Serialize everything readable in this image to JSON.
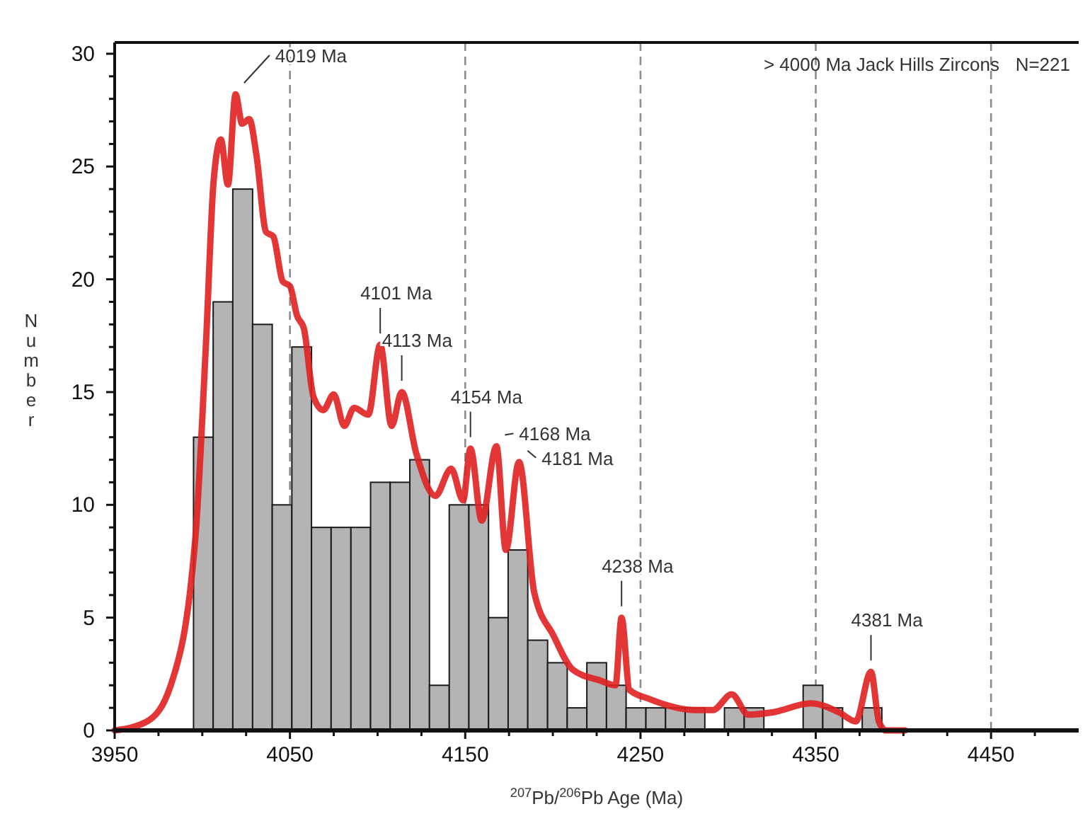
{
  "chart_data": {
    "type": "histogram",
    "xlabel": "$^{207}$Pb/$^{206}$Pb Age  (Ma)",
    "ylabel": "Number",
    "bins": [
      3995.0,
      4006.2,
      4017.4,
      4028.7,
      4039.9,
      4051.1,
      4062.3,
      4073.5,
      4084.8,
      4096.0,
      4107.2,
      4118.4,
      4129.6,
      4140.9,
      4152.1,
      4163.3,
      4174.5,
      4185.7,
      4197.0,
      4208.2,
      4219.4,
      4230.6,
      4241.8,
      4253.1,
      4264.3,
      4275.5,
      4286.7,
      4297.9,
      4309.2,
      4320.4,
      4331.6,
      4342.8,
      4354.0,
      4365.3,
      4376.5,
      4387.7
    ],
    "series": [
      {
        "color": "#b4b4b4",
        "values": [
          13,
          19,
          24,
          18,
          10,
          17,
          9,
          9,
          9,
          11,
          11,
          12,
          2,
          10,
          10,
          5,
          8,
          4,
          3,
          1,
          3,
          2,
          1,
          1,
          1,
          1,
          0,
          1,
          1,
          0,
          0,
          2,
          1,
          0,
          1
        ]
      },
      {
        "type": "line",
        "color": "#e02020",
        "x": [
          3950,
          3968.5,
          3982,
          3996,
          4002,
          4006.5,
          4010.6,
          4014.6,
          4019,
          4022.7,
          4026.8,
          4030.9,
          4036.4,
          4040.5,
          4045.9,
          4050,
          4054,
          4058,
          4063.4,
          4069,
          4075,
          4081,
          4086.6,
          4094.7,
          4101.5,
          4108,
          4113.8,
          4122,
          4133,
          4142,
          4148.8,
          4153,
          4159.4,
          4167.8,
          4173.2,
          4180.7,
          4189.4,
          4200.4,
          4211.3,
          4227.5,
          4235.7,
          4239.2,
          4243.7,
          4254.8,
          4281.5,
          4291.3,
          4302,
          4311.6,
          4325.3,
          4347.2,
          4363.3,
          4372.8,
          4381.5,
          4386,
          4390,
          4401
        ],
        "values": [
          0,
          0.4,
          2.0,
          8.5,
          17,
          24.4,
          26.2,
          24.2,
          28.2,
          26.9,
          27.1,
          25.5,
          22.1,
          21.9,
          19.9,
          19.7,
          18.4,
          17.8,
          14.8,
          14.2,
          14.9,
          13.5,
          14.3,
          14.0,
          17.1,
          13.5,
          15.0,
          12.3,
          10.4,
          11.6,
          10.2,
          12.5,
          9.3,
          12.6,
          8.0,
          11.9,
          6.1,
          4.2,
          2.7,
          2.2,
          2.0,
          5.0,
          1.8,
          1.4,
          0.9,
          0.9,
          1.6,
          0.7,
          0.8,
          1.2,
          0.8,
          0.4,
          2.6,
          0.4,
          0,
          0
        ]
      }
    ],
    "xlim": [
      3950,
      4500
    ],
    "ylim": [
      0,
      30.5
    ],
    "xticks": [
      3950,
      {
        "value": 3975,
        "label": null
      },
      {
        "value": 4000,
        "label": null
      },
      {
        "value": 4025,
        "label": null
      },
      4050,
      {
        "value": 4075,
        "label": null
      },
      {
        "value": 4100,
        "label": null
      },
      {
        "value": 4125,
        "label": null
      },
      4150,
      {
        "value": 4175,
        "label": null
      },
      {
        "value": 4200,
        "label": null
      },
      {
        "value": 4225,
        "label": null
      },
      4250,
      {
        "value": 4275,
        "label": null
      },
      {
        "value": 4300,
        "label": null
      },
      {
        "value": 4325,
        "label": null
      },
      4350,
      {
        "value": 4375,
        "label": null
      },
      {
        "value": 4400,
        "label": null
      },
      {
        "value": 4425,
        "label": null
      },
      4450,
      {
        "value": 4475,
        "label": null
      }
    ],
    "yticks": [
      0,
      {
        "value": 1,
        "label": null
      },
      {
        "value": 2,
        "label": null
      },
      {
        "value": 3,
        "label": null
      },
      {
        "value": 4,
        "label": null
      },
      5,
      {
        "value": 6,
        "label": null
      },
      {
        "value": 7,
        "label": null
      },
      {
        "value": 8,
        "label": null
      },
      {
        "value": 9,
        "label": null
      },
      10,
      {
        "value": 11,
        "label": null
      },
      {
        "value": 12,
        "label": null
      },
      {
        "value": 13,
        "label": null
      },
      {
        "value": 14,
        "label": null
      },
      15,
      {
        "value": 16,
        "label": null
      },
      {
        "value": 17,
        "label": null
      },
      {
        "value": 18,
        "label": null
      },
      {
        "value": 19,
        "label": null
      },
      20,
      {
        "value": 21,
        "label": null
      },
      {
        "value": 22,
        "label": null
      },
      {
        "value": 23,
        "label": null
      },
      {
        "value": 24,
        "label": null
      },
      25,
      {
        "value": 26,
        "label": null
      },
      {
        "value": 27,
        "label": null
      },
      {
        "value": 28,
        "label": null
      },
      {
        "value": 29,
        "label": null
      },
      30
    ],
    "ref_lines": [
      {
        "axis": "x",
        "value": 4050,
        "color": "#8c8c8c",
        "line_style": "dashed"
      },
      {
        "axis": "x",
        "value": 4150,
        "color": "#8c8c8c",
        "line_style": "dashed"
      },
      {
        "axis": "x",
        "value": 4250,
        "color": "#8c8c8c",
        "line_style": "dashed"
      },
      {
        "axis": "x",
        "value": 4350,
        "color": "#8c8c8c",
        "line_style": "dashed"
      },
      {
        "axis": "x",
        "value": 4450,
        "color": "#8c8c8c",
        "line_style": "dashed"
      }
    ],
    "annotations": [
      {
        "text": "4019 Ma",
        "x": 4019,
        "y": 28.2
      },
      {
        "text": "4101 Ma",
        "x": 4101.5,
        "y": 17.1
      },
      {
        "text": "4113 Ma",
        "x": 4113.8,
        "y": 15.0
      },
      {
        "text": "4154 Ma",
        "x": 4153,
        "y": 12.5
      },
      {
        "text": "4168 Ma",
        "x": 4167.8,
        "y": 12.6
      },
      {
        "text": "4181 Ma",
        "x": 4180.7,
        "y": 11.9
      },
      {
        "text": "4238 Ma",
        "x": 4239.2,
        "y": 5.0
      },
      {
        "text": "4381 Ma",
        "x": 4381.5,
        "y": 2.6
      },
      "> 4000 Ma Jack Hills Zircons",
      "N=221"
    ]
  }
}
